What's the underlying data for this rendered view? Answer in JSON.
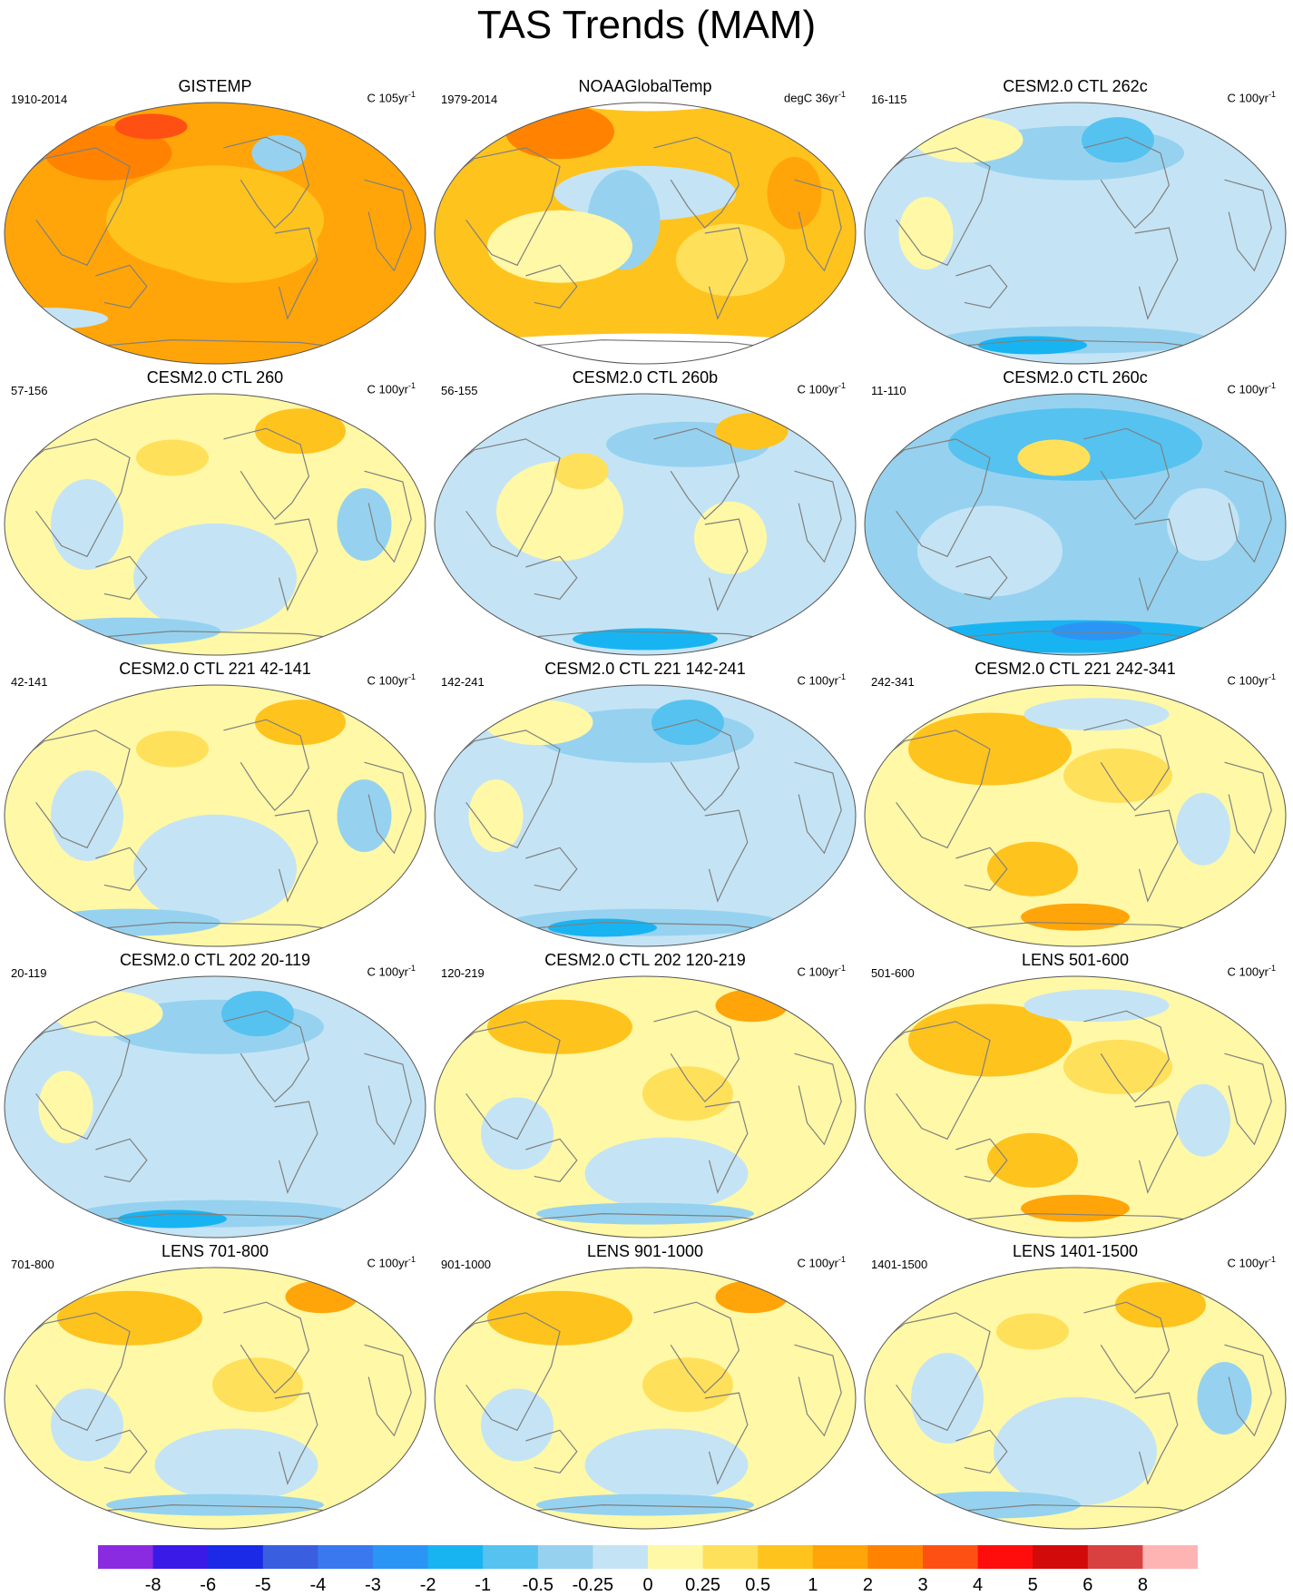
{
  "title": "TAS Trends (MAM)",
  "panels": [
    {
      "title": "GISTEMP",
      "range": "1910-2014",
      "units_prefix": "C 105yr",
      "units_sup": "-1",
      "pattern": "gistemp"
    },
    {
      "title": "NOAAGlobalTemp",
      "range": "1979-2014",
      "units_prefix": "degC 36yr",
      "units_sup": "-1",
      "pattern": "noaa"
    },
    {
      "title": "CESM2.0 CTL 262c",
      "range": "16-115",
      "units_prefix": "C 100yr",
      "units_sup": "-1",
      "pattern": "cool"
    },
    {
      "title": "CESM2.0 CTL 260",
      "range": "57-156",
      "units_prefix": "C 100yr",
      "units_sup": "-1",
      "pattern": "mixed"
    },
    {
      "title": "CESM2.0 CTL 260b",
      "range": "56-155",
      "units_prefix": "C 100yr",
      "units_sup": "-1",
      "pattern": "mixedcool"
    },
    {
      "title": "CESM2.0 CTL 260c",
      "range": "11-110",
      "units_prefix": "C 100yr",
      "units_sup": "-1",
      "pattern": "verycool"
    },
    {
      "title": "CESM2.0 CTL 221 42-141",
      "range": "42-141",
      "units_prefix": "C 100yr",
      "units_sup": "-1",
      "pattern": "mixed"
    },
    {
      "title": "CESM2.0 CTL 221 142-241",
      "range": "142-241",
      "units_prefix": "C 100yr",
      "units_sup": "-1",
      "pattern": "cool"
    },
    {
      "title": "CESM2.0 CTL 221 242-341",
      "range": "242-341",
      "units_prefix": "C 100yr",
      "units_sup": "-1",
      "pattern": "warm"
    },
    {
      "title": "CESM2.0 CTL 202 20-119",
      "range": "20-119",
      "units_prefix": "C 100yr",
      "units_sup": "-1",
      "pattern": "cool"
    },
    {
      "title": "CESM2.0 CTL 202 120-219",
      "range": "120-219",
      "units_prefix": "C 100yr",
      "units_sup": "-1",
      "pattern": "mixedwarm"
    },
    {
      "title": "LENS 501-600",
      "range": "501-600",
      "units_prefix": "C 100yr",
      "units_sup": "-1",
      "pattern": "warm"
    },
    {
      "title": "LENS 701-800",
      "range": "701-800",
      "units_prefix": "C 100yr",
      "units_sup": "-1",
      "pattern": "mixedwarm"
    },
    {
      "title": "LENS 901-1000",
      "range": "901-1000",
      "units_prefix": "C 100yr",
      "units_sup": "-1",
      "pattern": "mixedwarm"
    },
    {
      "title": "LENS 1401-1500",
      "range": "1401-1500",
      "units_prefix": "C 100yr",
      "units_sup": "-1",
      "pattern": "mixed"
    }
  ],
  "colorbar": {
    "colors": [
      "#8a2be2",
      "#3a1ae6",
      "#1a2ae6",
      "#3a5ee0",
      "#3a78f0",
      "#2a95f5",
      "#18b4f2",
      "#56c2f0",
      "#96d2ef",
      "#c4e4f5",
      "#fff8a6",
      "#ffe05a",
      "#ffc31e",
      "#ffa50a",
      "#ff8200",
      "#ff5014",
      "#ff0d0d",
      "#d20a0a",
      "#d94040",
      "#ffb4b4"
    ],
    "labels": [
      "-8",
      "-6",
      "-5",
      "-4",
      "-3",
      "-2",
      "-1",
      "-0.5",
      "-0.25",
      "0",
      "0.25",
      "0.5",
      "1",
      "2",
      "3",
      "4",
      "5",
      "6",
      "8"
    ]
  },
  "map_colors": {
    "coastline": "#808080",
    "missing": "#ffffff"
  }
}
